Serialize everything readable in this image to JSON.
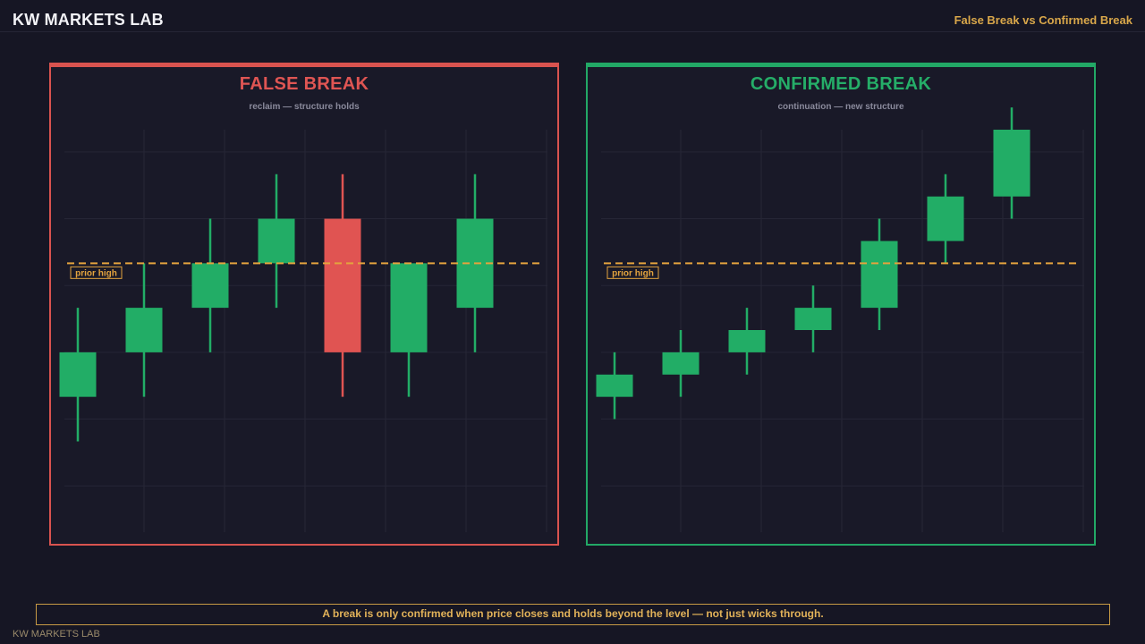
{
  "header": {
    "brand": "KW MARKETS LAB",
    "right_title": "False Break vs Confirmed Break"
  },
  "panels": [
    {
      "title": "FALSE BREAK",
      "subtitle": "reclaim — structure holds",
      "level_label": "prior high",
      "accent": "#df5553"
    },
    {
      "title": "CONFIRMED BREAK",
      "subtitle": "continuation — new structure",
      "level_label": "prior high",
      "accent": "#25ad68"
    }
  ],
  "colors": {
    "bull": "#22ad66",
    "bear": "#e05452",
    "level": "#e3a33e",
    "grid": "#262636"
  },
  "chart_data": [
    {
      "type": "candlestick",
      "title": "FALSE BREAK",
      "subtitle": "reclaim — structure holds",
      "level": 6,
      "level_label": "prior high",
      "ylim": [
        0,
        9
      ],
      "grid": true,
      "candles": [
        {
          "open": 3.0,
          "close": 4.0,
          "high": 5.0,
          "low": 2.0,
          "color": "bull"
        },
        {
          "open": 4.0,
          "close": 5.0,
          "high": 6.0,
          "low": 3.0,
          "color": "bull"
        },
        {
          "open": 5.0,
          "close": 6.0,
          "high": 7.0,
          "low": 4.0,
          "color": "bull"
        },
        {
          "open": 6.0,
          "close": 7.0,
          "high": 8.0,
          "low": 5.0,
          "color": "bull"
        },
        {
          "open": 7.0,
          "close": 4.0,
          "high": 8.0,
          "low": 3.0,
          "color": "bear"
        },
        {
          "open": 4.0,
          "close": 6.0,
          "high": 6.0,
          "low": 3.0,
          "color": "bull"
        },
        {
          "open": 5.0,
          "close": 7.0,
          "high": 8.0,
          "low": 4.0,
          "color": "bull"
        }
      ]
    },
    {
      "type": "candlestick",
      "title": "CONFIRMED BREAK",
      "subtitle": "continuation — new structure",
      "level": 6,
      "level_label": "prior high",
      "ylim": [
        0,
        9
      ],
      "grid": true,
      "candles": [
        {
          "open": 3.0,
          "close": 3.5,
          "high": 4.0,
          "low": 2.5,
          "color": "bull"
        },
        {
          "open": 3.5,
          "close": 4.0,
          "high": 4.5,
          "low": 3.0,
          "color": "bull"
        },
        {
          "open": 4.0,
          "close": 4.5,
          "high": 5.0,
          "low": 3.5,
          "color": "bull"
        },
        {
          "open": 4.5,
          "close": 5.0,
          "high": 5.5,
          "low": 4.0,
          "color": "bull"
        },
        {
          "open": 5.0,
          "close": 6.5,
          "high": 7.0,
          "low": 4.5,
          "color": "bull"
        },
        {
          "open": 6.5,
          "close": 7.5,
          "high": 8.0,
          "low": 6.0,
          "color": "bull"
        },
        {
          "open": 7.5,
          "close": 9.0,
          "high": 9.5,
          "low": 7.0,
          "color": "bull"
        }
      ]
    }
  ],
  "footer": {
    "note": "A break is only confirmed when price closes and holds beyond the level — not just wicks through.",
    "brand": "KW MARKETS LAB"
  }
}
